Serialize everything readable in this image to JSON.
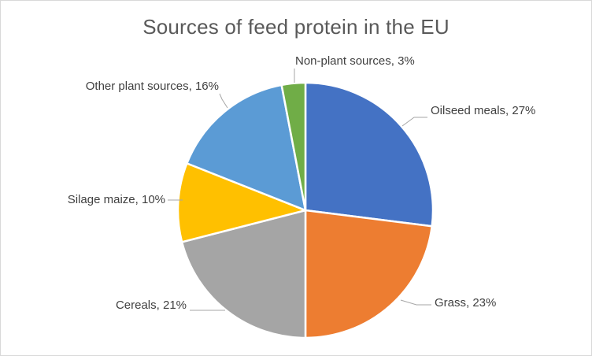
{
  "chart_data": {
    "type": "pie",
    "title": "Sources of feed protein in the EU",
    "slices": [
      {
        "label": "Oilseed meals",
        "value": 27,
        "display": "Oilseed meals, 27%",
        "color": "#4472C4"
      },
      {
        "label": "Grass",
        "value": 23,
        "display": "Grass, 23%",
        "color": "#ED7D31"
      },
      {
        "label": "Cereals",
        "value": 21,
        "display": "Cereals, 21%",
        "color": "#A5A5A5"
      },
      {
        "label": "Silage maize",
        "value": 10,
        "display": "Silage maize, 10%",
        "color": "#FFC000"
      },
      {
        "label": "Other plant sources",
        "value": 16,
        "display": "Other plant sources, 16%",
        "color": "#5B9BD5"
      },
      {
        "label": "Non-plant sources",
        "value": 3,
        "display": "Non-plant sources, 3%",
        "color": "#70AD47"
      }
    ],
    "start_angle_deg": 0,
    "direction": "clockwise"
  }
}
